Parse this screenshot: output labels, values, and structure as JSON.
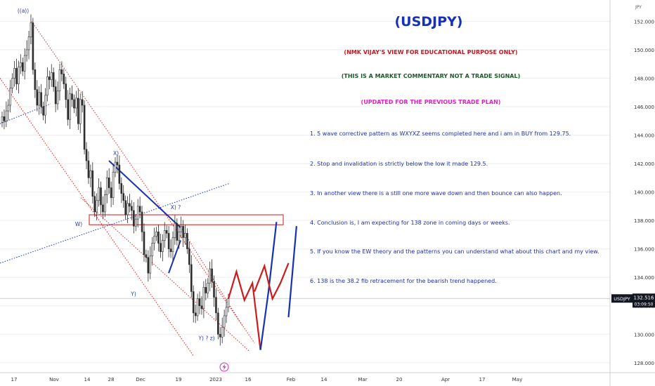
{
  "chart_data": {
    "type": "candlestick",
    "title": "(USDJPY)",
    "currency_label": "JPY",
    "ylim": [
      127.3,
      153.5
    ],
    "y_ticks": [
      128,
      130,
      132,
      134,
      136,
      138,
      140,
      142,
      144,
      146,
      148,
      150,
      152
    ],
    "y_tick_labels": [
      "128.000",
      "130.000",
      "132.000",
      "134.000",
      "136.000",
      "138.000",
      "140.000",
      "142.000",
      "144.000",
      "146.000",
      "148.000",
      "150.000",
      "152.000"
    ],
    "x_tick_labels": [
      "17",
      "Nov",
      "14",
      "28",
      "Dec",
      "19",
      "2023",
      "16",
      "Feb",
      "14",
      "Mar",
      "20",
      "Apr",
      "17",
      "May"
    ],
    "last_price": {
      "symbol": "USDJPY",
      "price": "132.516",
      "value": 132.516,
      "countdown": "03:09:50"
    },
    "resistance_zone": [
      137.7,
      138.4
    ],
    "series": [
      {
        "kind": "close_path",
        "values": [
          145.3,
          145.0,
          145.7,
          146.1,
          147.3,
          148.0,
          148.7,
          147.6,
          148.8,
          149.1,
          148.5,
          149.6,
          150.0,
          150.9,
          151.9,
          148.6,
          147.2,
          146.1,
          147.0,
          146.0,
          145.4,
          146.8,
          148.1,
          147.9,
          148.4,
          147.4,
          146.2,
          147.1,
          148.6,
          148.3,
          147.6,
          146.5,
          145.1,
          146.9,
          146.5,
          145.9,
          146.6,
          144.8,
          146.5,
          146.1,
          143.0,
          142.2,
          141.0,
          141.5,
          139.7,
          138.6,
          139.4,
          140.3,
          139.1,
          138.6,
          139.8,
          141.0,
          140.3,
          139.6,
          141.4,
          142.1,
          141.9,
          140.6,
          139.9,
          139.4,
          138.4,
          139.2,
          139.0,
          138.7,
          137.6,
          138.1,
          139.0,
          138.6,
          137.2,
          135.6,
          135.4,
          134.3,
          135.5,
          136.4,
          136.9,
          137.2,
          136.4,
          135.8,
          136.6,
          137.3,
          137.1,
          136.0,
          135.8,
          136.8,
          137.8,
          136.6,
          137.2,
          137.6,
          136.8,
          137.1,
          136.0,
          134.9,
          133.0,
          131.5,
          131.3,
          132.5,
          132.0,
          131.8,
          133.3,
          132.9,
          133.6,
          134.6,
          133.7,
          132.6,
          131.5,
          130.0,
          129.8,
          130.5,
          131.3,
          131.9,
          132.5
        ]
      }
    ],
    "forecast_paths": [
      {
        "color": "#d01a1a",
        "points": [
          [
            0.0,
            132.5
          ],
          [
            2,
            134.4
          ],
          [
            4,
            132.4
          ],
          [
            6,
            133.6
          ],
          [
            8,
            128.9
          ]
        ]
      },
      {
        "color": "#1631b8",
        "points": [
          [
            8,
            128.9
          ],
          [
            10,
            133.0
          ],
          [
            12,
            137.9
          ]
        ]
      },
      {
        "color": "#d01a1a",
        "points": [
          [
            6.5,
            133.0
          ],
          [
            9,
            134.8
          ],
          [
            11,
            132.5
          ],
          [
            13,
            133.6
          ],
          [
            15,
            135.0
          ]
        ]
      },
      {
        "color": "#1631b8",
        "points": [
          [
            15,
            131.2
          ],
          [
            17,
            137.6
          ]
        ]
      }
    ],
    "wave_labels": [
      {
        "text": "((a))",
        "at": "peak",
        "value": 152.6
      },
      {
        "text": "W)",
        "value": 137.6
      },
      {
        "text": "X)",
        "value": 142.6
      },
      {
        "text": "X) ?",
        "value": 138.8
      },
      {
        "text": "Y)",
        "value": 132.7
      },
      {
        "text": "Y) ? z)",
        "value": 129.6
      }
    ]
  },
  "notes": {
    "disclaimer_1": "(NMK VIJAY'S VIEW FOR EDUCATIONAL PURPOSE ONLY)",
    "disclaimer_2": "(THIS IS A MARKET COMMENTARY NOT A TRADE SIGNAL)",
    "disclaimer_3": "(UPDATED FOR THE PREVIOUS TRADE PLAN)",
    "points": [
      "1. 5 wave corrective pattern as WXYXZ seems completed here and i am in BUY from 129.75.",
      "2. Stop and invalidation is strictly below the low it made 129.5.",
      "3. In another view there is a still one more wave down and then bounce can also happen.",
      "4. Conclusion is, I am expecting for 138 zone in coming days or weeks.",
      "5. If you know the EW theory and the patterns you can understand what about this chart and my view.",
      "6. 138 is the 38.2 fib retracement for the  bearish trend happened."
    ]
  },
  "colors": {
    "candle": "#2d2d2d",
    "wave_label": "#2838a8",
    "blue_line": "#1631b8",
    "red_line": "#d01a1a",
    "channel": "#d22a2a",
    "zone": "#cc1a1a",
    "grid": "#eeeeee",
    "price_tag": "#131722"
  },
  "icons": {
    "event_marker": "lightning-icon"
  }
}
